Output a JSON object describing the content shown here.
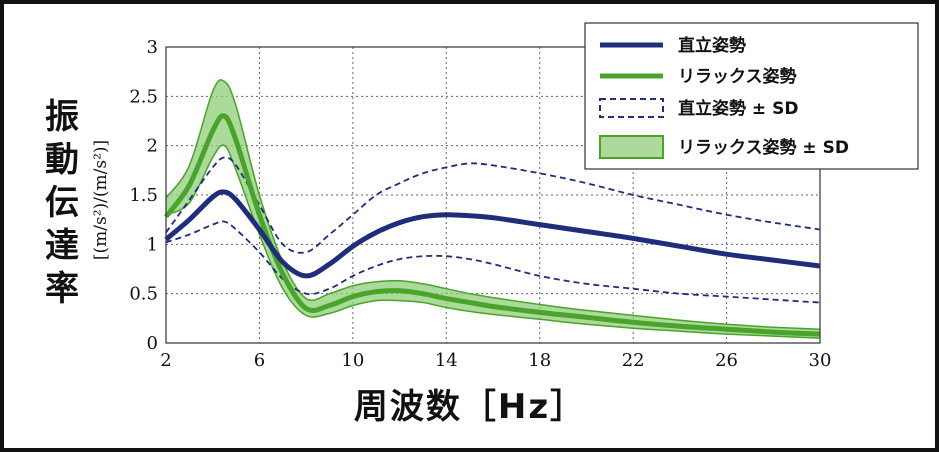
{
  "chart_data": {
    "type": "line",
    "xlabel": "周波数［Hz］",
    "ylabel_main": "振動伝達率",
    "ylabel_unit": "[(m/s²)/(m/s²)]",
    "xlim": [
      2,
      30
    ],
    "ylim": [
      0,
      3
    ],
    "xticks": [
      2,
      6,
      10,
      14,
      18,
      22,
      26,
      30
    ],
    "yticks": [
      0,
      0.5,
      1,
      1.5,
      2,
      2.5,
      3
    ],
    "ytick_labels": [
      "0",
      "0.5",
      "1",
      "1.5",
      "2",
      "2.5",
      "3"
    ],
    "grid": true,
    "legend_position": "top-right",
    "colors": {
      "upright": "#1f2d7a",
      "relax": "#4aa32b",
      "relax_band": "#8fce7a"
    },
    "legend": [
      "直立姿勢",
      "リラックス姿勢",
      "直立姿勢 ± SD",
      "リラックス姿勢 ± SD"
    ],
    "x": [
      2,
      3,
      4,
      4.5,
      5,
      6,
      7,
      8,
      9,
      10,
      11,
      12,
      13,
      14,
      15,
      16,
      18,
      20,
      22,
      24,
      26,
      28,
      30
    ],
    "series": [
      {
        "name": "直立姿勢",
        "values": [
          1.05,
          1.25,
          1.48,
          1.53,
          1.45,
          1.15,
          0.82,
          0.68,
          0.8,
          0.98,
          1.12,
          1.22,
          1.28,
          1.3,
          1.29,
          1.27,
          1.2,
          1.13,
          1.06,
          0.98,
          0.9,
          0.84,
          0.78
        ]
      },
      {
        "name": "リラックス姿勢",
        "values": [
          1.28,
          1.6,
          2.15,
          2.3,
          2.05,
          1.3,
          0.7,
          0.35,
          0.38,
          0.47,
          0.52,
          0.53,
          0.5,
          0.45,
          0.41,
          0.37,
          0.31,
          0.26,
          0.21,
          0.17,
          0.14,
          0.11,
          0.09
        ]
      },
      {
        "name": "直立姿勢 ± SD",
        "upper": [
          1.12,
          1.45,
          1.78,
          1.88,
          1.8,
          1.4,
          1.0,
          0.92,
          1.1,
          1.3,
          1.5,
          1.62,
          1.72,
          1.78,
          1.82,
          1.8,
          1.72,
          1.62,
          1.5,
          1.4,
          1.3,
          1.22,
          1.15
        ],
        "lower": [
          1.02,
          1.1,
          1.2,
          1.23,
          1.15,
          0.92,
          0.65,
          0.5,
          0.55,
          0.68,
          0.78,
          0.85,
          0.88,
          0.88,
          0.85,
          0.8,
          0.68,
          0.6,
          0.55,
          0.5,
          0.47,
          0.44,
          0.41
        ]
      },
      {
        "name": "リラックス姿勢 ± SD",
        "upper": [
          1.47,
          1.8,
          2.55,
          2.65,
          2.4,
          1.5,
          0.82,
          0.45,
          0.5,
          0.58,
          0.62,
          0.63,
          0.6,
          0.55,
          0.5,
          0.46,
          0.39,
          0.33,
          0.28,
          0.23,
          0.19,
          0.16,
          0.14
        ],
        "lower": [
          1.3,
          1.42,
          1.88,
          2.0,
          1.75,
          1.1,
          0.55,
          0.28,
          0.3,
          0.38,
          0.43,
          0.43,
          0.41,
          0.36,
          0.32,
          0.29,
          0.24,
          0.19,
          0.15,
          0.12,
          0.09,
          0.07,
          0.05
        ]
      }
    ]
  }
}
